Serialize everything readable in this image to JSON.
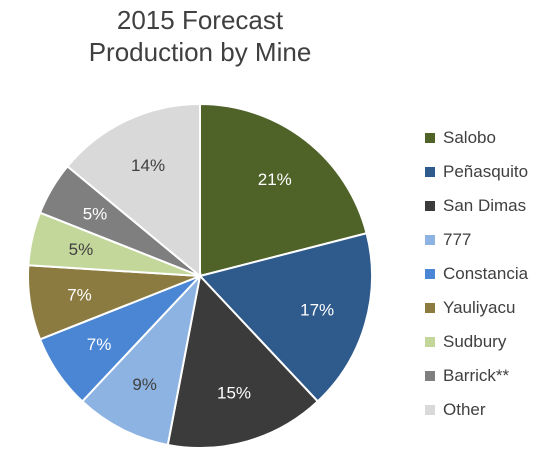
{
  "chart_data": {
    "type": "pie",
    "title_lines": [
      "2015 Forecast",
      "Production by Mine"
    ],
    "slices": [
      {
        "name": "Salobo",
        "value": 21,
        "label": "21%",
        "color": "#4f6228",
        "label_color": "#ffffff"
      },
      {
        "name": "Peñasquito",
        "value": 17,
        "label": "17%",
        "color": "#2e5a8c",
        "label_color": "#ffffff"
      },
      {
        "name": "San Dimas",
        "value": 15,
        "label": "15%",
        "color": "#3b3b3b",
        "label_color": "#ffffff"
      },
      {
        "name": "777",
        "value": 9,
        "label": "9%",
        "color": "#8db3e2",
        "label_color": "#404040"
      },
      {
        "name": "Constancia",
        "value": 7,
        "label": "7%",
        "color": "#4a86d4",
        "label_color": "#ffffff"
      },
      {
        "name": "Yauliyacu",
        "value": 7,
        "label": "7%",
        "color": "#8c7b40",
        "label_color": "#ffffff"
      },
      {
        "name": "Sudbury",
        "value": 5,
        "label": "5%",
        "color": "#c4d79b",
        "label_color": "#404040"
      },
      {
        "name": "Barrick**",
        "value": 5,
        "label": "5%",
        "color": "#7f7f7f",
        "label_color": "#ffffff"
      },
      {
        "name": "Other",
        "value": 14,
        "label": "14%",
        "color": "#d9d9d9",
        "label_color": "#404040"
      }
    ],
    "legend_position": "right"
  }
}
